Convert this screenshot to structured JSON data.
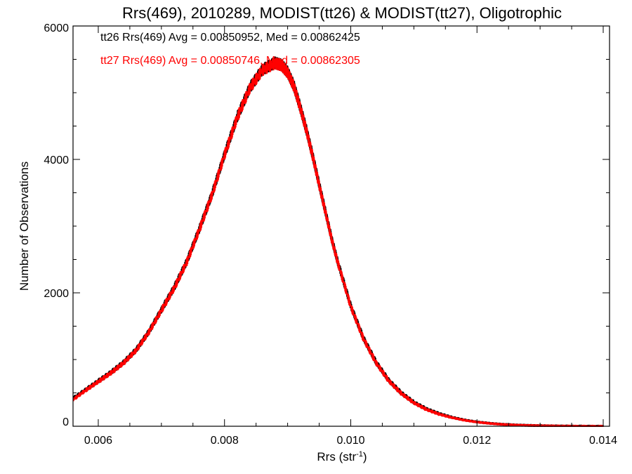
{
  "chart_data": {
    "type": "line",
    "title": "Rrs(469), 2010289, MODIST(tt26) & MODIST(tt27), Oligotrophic",
    "xlabel": "Rrs (str",
    "xlabel_sup": "-1",
    "xlabel_close": ")",
    "ylabel": "Number of Observations",
    "xlim": [
      0.0056,
      0.0141
    ],
    "ylim": [
      0,
      6000
    ],
    "x_ticks": [
      0.006,
      0.008,
      0.01,
      0.012,
      0.014
    ],
    "x_tick_labels": [
      "0.006",
      "0.008",
      "0.010",
      "0.012",
      "0.014"
    ],
    "y_ticks": [
      0,
      2000,
      4000,
      6000
    ],
    "y_tick_labels": [
      "0",
      "2000",
      "4000",
      "6000"
    ],
    "x_minor_ticks": [
      0.0065,
      0.007,
      0.0075,
      0.0085,
      0.009,
      0.0095,
      0.0105,
      0.011,
      0.0115,
      0.0125,
      0.013,
      0.0135
    ],
    "y_minor_ticks": [
      500,
      1000,
      1500,
      2500,
      3000,
      3500,
      4500,
      5000,
      5500
    ],
    "legend": [
      {
        "text": "tt26 Rrs(469) Avg = 0.00850952, Med = 0.00862425",
        "color": "#000000"
      },
      {
        "text": "tt27 Rrs(469) Avg = 0.00850746, Med = 0.00862305",
        "color": "#ff0000"
      }
    ],
    "series": [
      {
        "color": "#000000",
        "x": [
          0.0056,
          0.0058,
          0.006,
          0.0062,
          0.0064,
          0.0066,
          0.0068,
          0.007,
          0.0072,
          0.0074,
          0.0076,
          0.0078,
          0.008,
          0.0082,
          0.0084,
          0.0086,
          0.0088,
          0.0089,
          0.009,
          0.0091,
          0.0092,
          0.0093,
          0.0094,
          0.0095,
          0.0096,
          0.0097,
          0.0098,
          0.01,
          0.0102,
          0.0104,
          0.0106,
          0.0108,
          0.011,
          0.0112,
          0.0114,
          0.0116,
          0.0118,
          0.012,
          0.0122,
          0.0124,
          0.0126,
          0.0128,
          0.013,
          0.0132,
          0.0135,
          0.014
        ],
        "y": [
          420,
          550,
          680,
          810,
          960,
          1150,
          1420,
          1750,
          2080,
          2470,
          2960,
          3480,
          4080,
          4640,
          5080,
          5350,
          5450,
          5420,
          5310,
          5100,
          4780,
          4430,
          4040,
          3620,
          3210,
          2800,
          2440,
          1800,
          1320,
          960,
          690,
          500,
          360,
          260,
          190,
          135,
          95,
          65,
          45,
          30,
          20,
          14,
          9,
          6,
          3,
          1
        ]
      },
      {
        "color": "#ff0000",
        "x": [
          0.0056,
          0.0058,
          0.006,
          0.0062,
          0.0064,
          0.0066,
          0.0068,
          0.007,
          0.0072,
          0.0074,
          0.0076,
          0.0078,
          0.008,
          0.0082,
          0.0084,
          0.0086,
          0.0088,
          0.0089,
          0.009,
          0.0091,
          0.0092,
          0.0093,
          0.0094,
          0.0095,
          0.0096,
          0.0097,
          0.0098,
          0.01,
          0.0102,
          0.0104,
          0.0106,
          0.0108,
          0.011,
          0.0112,
          0.0114,
          0.0116,
          0.0118,
          0.012,
          0.0122,
          0.0124,
          0.0126,
          0.0128,
          0.013,
          0.0132,
          0.0135,
          0.014
        ],
        "y": [
          400,
          540,
          670,
          800,
          950,
          1140,
          1410,
          1740,
          2070,
          2460,
          2950,
          3470,
          4070,
          4630,
          5070,
          5340,
          5440,
          5410,
          5300,
          5090,
          4770,
          4420,
          4030,
          3610,
          3200,
          2790,
          2430,
          1790,
          1310,
          950,
          680,
          490,
          350,
          250,
          180,
          130,
          90,
          62,
          42,
          28,
          18,
          12,
          8,
          5,
          2,
          1
        ]
      }
    ],
    "grid": false
  }
}
